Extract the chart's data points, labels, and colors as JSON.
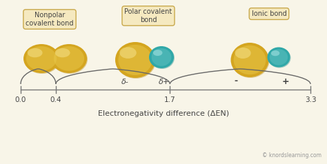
{
  "bg_color": "#f8f5e8",
  "box_facecolor": "#f5e9c0",
  "box_edgecolor": "#c8a84b",
  "gold_dark": "#b8860b",
  "gold_mid": "#d4a520",
  "gold_light": "#e8c84a",
  "gold_highlight": "#f0d878",
  "teal_dark": "#1a8888",
  "teal_mid": "#30a8a8",
  "teal_light": "#70c8c8",
  "axis_ticks": [
    0.0,
    0.4,
    1.7,
    3.3
  ],
  "axis_label": "Electronegativity difference (ΔEN)",
  "watermark": "© knordslearning.com",
  "text_color": "#444444",
  "axis_color": "#777777"
}
